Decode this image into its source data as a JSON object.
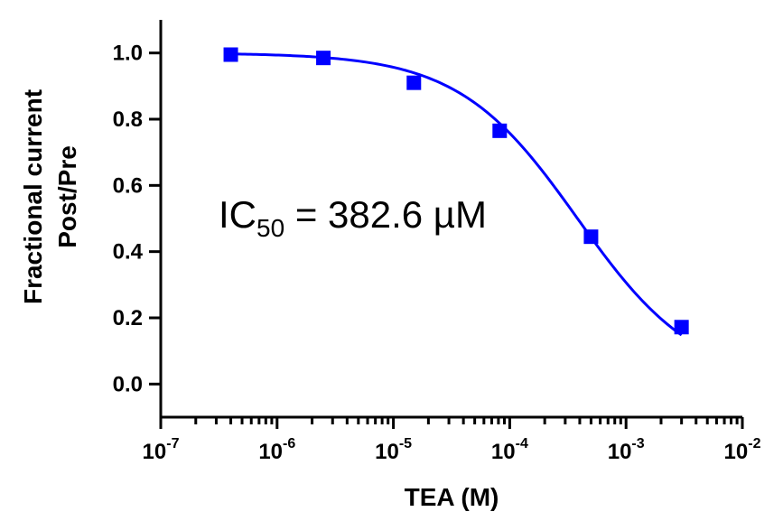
{
  "chart_data": {
    "type": "scatter",
    "xlabel": "TEA (M)",
    "ylabel_lines": [
      "Fractional current",
      "Post/Pre"
    ],
    "x_scale": "log",
    "xlim": [
      1e-07,
      0.01
    ],
    "ylim": [
      -0.1,
      1.1
    ],
    "x_ticks": [
      {
        "value": 1e-07,
        "base": "10",
        "exp": "-7"
      },
      {
        "value": 1e-06,
        "base": "10",
        "exp": "-6"
      },
      {
        "value": 1e-05,
        "base": "10",
        "exp": "-5"
      },
      {
        "value": 0.0001,
        "base": "10",
        "exp": "-4"
      },
      {
        "value": 0.001,
        "base": "10",
        "exp": "-3"
      },
      {
        "value": 0.01,
        "base": "10",
        "exp": "-2"
      }
    ],
    "y_ticks": [
      {
        "value": 0.0,
        "label": "0.0"
      },
      {
        "value": 0.2,
        "label": "0.2"
      },
      {
        "value": 0.4,
        "label": "0.4"
      },
      {
        "value": 0.6,
        "label": "0.6"
      },
      {
        "value": 0.8,
        "label": "0.8"
      },
      {
        "value": 1.0,
        "label": "1.0"
      }
    ],
    "series": [
      {
        "color": "#0000ff",
        "marker": "square",
        "x": [
          4e-07,
          2.5e-06,
          1.5e-05,
          8.2e-05,
          0.0005,
          0.003
        ],
        "y": [
          0.995,
          0.985,
          0.91,
          0.765,
          0.445,
          0.172
        ]
      }
    ],
    "fit_curve": {
      "color": "#0000ff",
      "ic50": 0.0003826,
      "top": 1.0,
      "bottom": 0.0,
      "hill": 0.85,
      "x_range": [
        4e-07,
        0.003
      ]
    },
    "annotation": {
      "prefix": "IC",
      "subscript": "50",
      "suffix": " = 382.6 µM"
    },
    "grid": false,
    "legend": "none"
  }
}
